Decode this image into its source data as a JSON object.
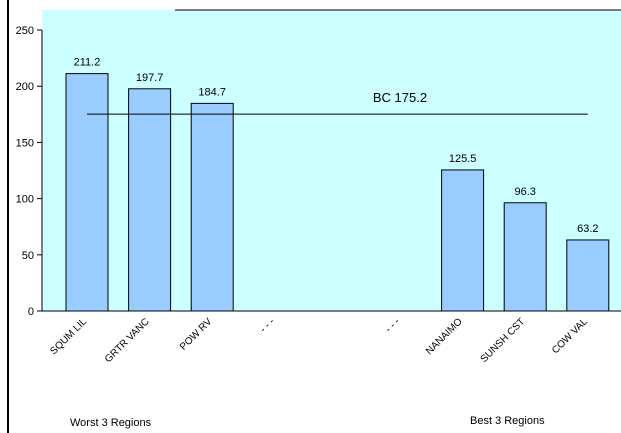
{
  "chart_data": {
    "type": "bar",
    "categories": [
      "SQUM LIL",
      "GRTR VANC",
      "POW RV",
      "- - -",
      null,
      "- - -",
      "NANAIMO",
      "SUNSH CST",
      "COW VAL"
    ],
    "values": [
      211.2,
      197.7,
      184.7,
      null,
      null,
      null,
      125.5,
      96.3,
      63.2
    ],
    "color": "#99ccff",
    "ylim": [
      0,
      250
    ],
    "yticks": [
      0,
      50,
      100,
      150,
      200,
      250
    ],
    "reference": {
      "label": "BC 175.2",
      "value": 175.2
    },
    "footnotes": [
      "Worst 3 Regions",
      "Best 3 Regions"
    ]
  }
}
